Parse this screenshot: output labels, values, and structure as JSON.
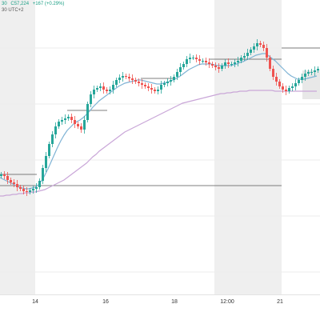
{
  "header": {
    "open_text": "30",
    "close_text": "C57,224",
    "change_text": "+167 (+0.29%)",
    "timezone_text": "30 UTC+2"
  },
  "time_axis": {
    "labels": [
      "14",
      "16",
      "18",
      "12:00",
      "21"
    ]
  },
  "colors": {
    "up": "#26a69a",
    "down": "#ef5350",
    "ema_fast": "#7fb3d5",
    "ema_slow": "#c9a6d8",
    "shade": "#efefef",
    "grid": "#ececec",
    "level_line": "#555555"
  },
  "chart_data": {
    "type": "line",
    "title": "",
    "xlabel": "",
    "ylabel": "",
    "x": [
      0,
      4,
      8,
      12,
      16,
      20,
      24,
      28,
      32,
      36,
      40,
      44,
      48,
      52,
      56,
      60,
      64,
      68,
      72,
      76,
      80,
      84,
      88,
      92,
      96,
      100,
      104,
      108,
      112,
      116,
      120,
      124,
      128,
      132,
      136,
      140,
      144,
      148,
      152,
      156,
      160,
      164,
      168,
      172,
      176,
      180,
      184,
      188,
      192,
      196,
      200,
      204,
      208,
      212,
      216,
      220,
      224,
      228,
      232,
      236,
      240,
      244,
      248,
      252,
      256,
      260,
      264,
      268,
      272,
      276,
      280,
      284,
      288,
      292,
      296,
      300,
      304,
      308,
      312,
      316,
      320,
      324,
      328,
      332,
      336,
      340,
      344,
      348,
      352,
      356,
      360,
      364,
      368,
      372,
      376,
      380,
      384,
      388,
      392,
      396
    ],
    "series": [
      {
        "name": "",
        "values": [
          218,
          220,
          225,
          228,
          230,
          234,
          236,
          239,
          240,
          238,
          236,
          234,
          226,
          210,
          195,
          180,
          168,
          158,
          152,
          150,
          148,
          146,
          150,
          155,
          158,
          162,
          150,
          130,
          118,
          112,
          110,
          108,
          112,
          114,
          112,
          106,
          100,
          97,
          95,
          96,
          98,
          100,
          102,
          104,
          106,
          108,
          110,
          112,
          114,
          112,
          106,
          104,
          102,
          100,
          96,
          90,
          84,
          80,
          74,
          72,
          72,
          74,
          76,
          76,
          78,
          80,
          82,
          84,
          86,
          82,
          78,
          80,
          80,
          78,
          76,
          72,
          70,
          66,
          62,
          58,
          54,
          56,
          60,
          72,
          86,
          96,
          102,
          108,
          112,
          114,
          110,
          108,
          104,
          100,
          96,
          92,
          90,
          90,
          88,
          86
        ]
      },
      {
        "name": "",
        "values": [
          222,
          224,
          226,
          228,
          230,
          232,
          234,
          235,
          236,
          236,
          235,
          234,
          231,
          226,
          219,
          211,
          202,
          193,
          184,
          176,
          169,
          163,
          159,
          155,
          152,
          150,
          147,
          143,
          139,
          134,
          130,
          126,
          123,
          120,
          117,
          114,
          111,
          108,
          106,
          104,
          103,
          102,
          101,
          100,
          100,
          101,
          102,
          103,
          104,
          105,
          105,
          104,
          103,
          102,
          100,
          98,
          96,
          93,
          90,
          87,
          85,
          83,
          81,
          80,
          80,
          80,
          80,
          81,
          82,
          82,
          82,
          82,
          82,
          81,
          80,
          78,
          77,
          75,
          73,
          71,
          69,
          68,
          67,
          67,
          70,
          73,
          76,
          80,
          84,
          88,
          92,
          95,
          97,
          99,
          99,
          99,
          98,
          97,
          96,
          95
        ]
      },
      {
        "name": "",
        "values": [
          245,
          245,
          244,
          244,
          243,
          243,
          242,
          242,
          241,
          241,
          240,
          240,
          239,
          238,
          237,
          235,
          233,
          231,
          229,
          227,
          225,
          222,
          219,
          216,
          213,
          210,
          207,
          204,
          200,
          196,
          193,
          189,
          186,
          183,
          180,
          177,
          174,
          171,
          168,
          165,
          163,
          161,
          159,
          157,
          155,
          153,
          151,
          149,
          147,
          145,
          143,
          141,
          139,
          137,
          135,
          133,
          131,
          129,
          128,
          127,
          126,
          125,
          124,
          123,
          122,
          121,
          120,
          119,
          118,
          117,
          117,
          116,
          116,
          115,
          115,
          114,
          114,
          114,
          113,
          113,
          113,
          113,
          113,
          113,
          113,
          113,
          114,
          114,
          114,
          114,
          114,
          114,
          114,
          114,
          114,
          114,
          114,
          114,
          114,
          114
        ]
      }
    ]
  }
}
